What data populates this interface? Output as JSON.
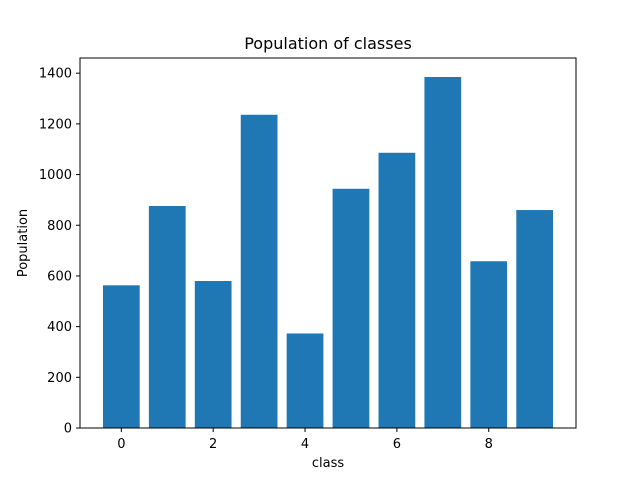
{
  "chart_data": {
    "type": "bar",
    "title": "Population of classes",
    "xlabel": "class",
    "ylabel": "Population",
    "categories": [
      0,
      1,
      2,
      3,
      4,
      5,
      6,
      7,
      8,
      9
    ],
    "values": [
      563,
      876,
      580,
      1236,
      373,
      944,
      1086,
      1385,
      658,
      860
    ],
    "xlim": [
      -0.9,
      9.9
    ],
    "ylim": [
      0,
      1460
    ],
    "xticks": [
      0,
      2,
      4,
      6,
      8
    ],
    "yticks": [
      0,
      200,
      400,
      600,
      800,
      1000,
      1200,
      1400
    ],
    "bar_width": 0.8,
    "bar_color": "#1f77b4",
    "grid": false,
    "legend": "none"
  }
}
